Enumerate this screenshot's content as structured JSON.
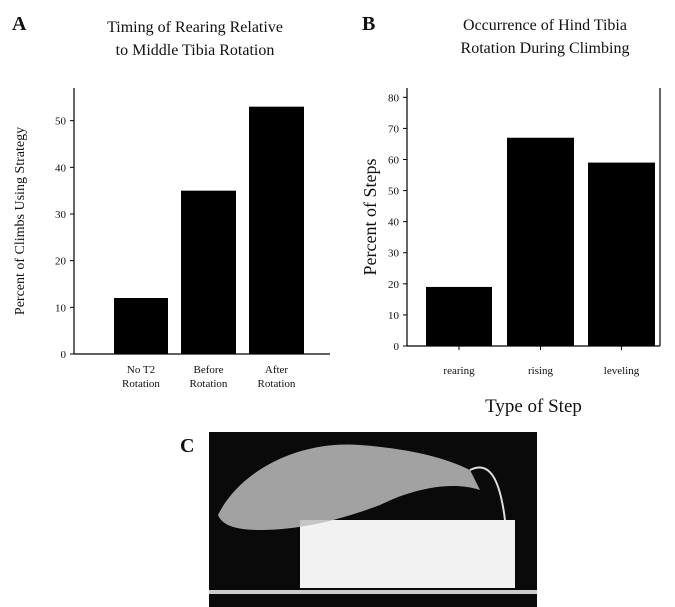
{
  "chart_data": [
    {
      "type": "bar",
      "panel_label": "A",
      "title": [
        "Timing of Rearing Relative",
        "to Middle Tibia Rotation"
      ],
      "y_label": "Percent of Climbs Using Strategy",
      "categories": [
        "No T2\nRotation",
        "Before\nRotation",
        "After\nRotation"
      ],
      "values": [
        12,
        35,
        53
      ],
      "color": "#000000",
      "ylim": [
        0,
        57
      ],
      "yticks": [
        0,
        10,
        20,
        30,
        40,
        50
      ]
    },
    {
      "type": "bar",
      "panel_label": "B",
      "title": [
        "Occurrence of Hind Tibia",
        "Rotation During Climbing"
      ],
      "y_label": "Percent of Steps",
      "x_label": "Type of Step",
      "categories": [
        "rearing",
        "rising",
        "leveling"
      ],
      "values": [
        19,
        67,
        59
      ],
      "color": "#000000",
      "ylim": [
        0,
        83
      ],
      "yticks": [
        0,
        10,
        20,
        30,
        40,
        50,
        60,
        70,
        80
      ]
    }
  ],
  "photo": {
    "panel_label": "C"
  }
}
